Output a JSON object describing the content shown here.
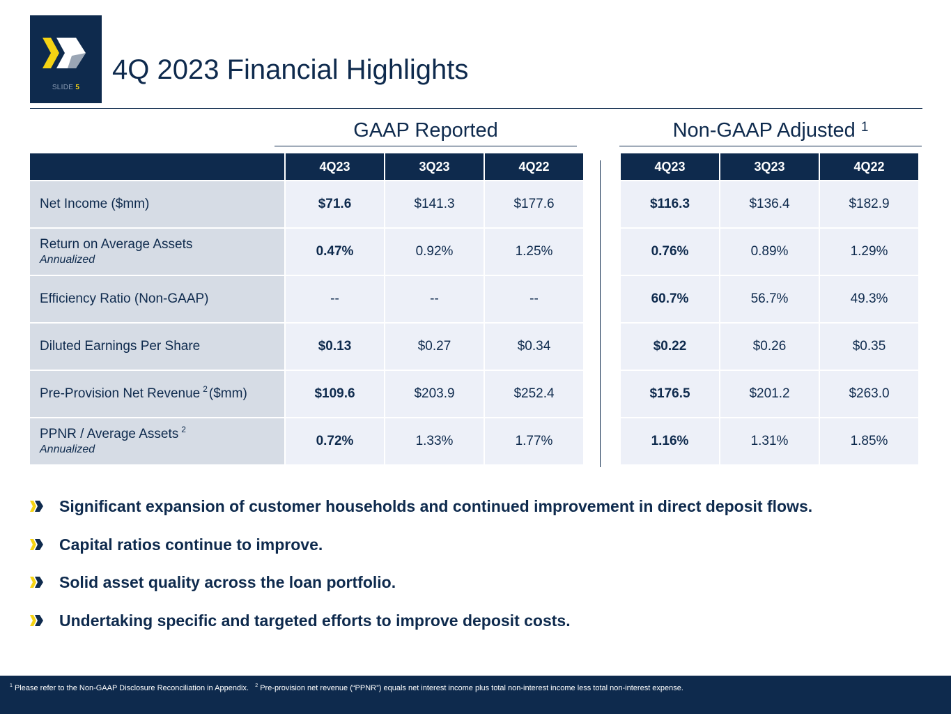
{
  "slide": {
    "label": "SLIDE",
    "number": "5"
  },
  "title": "4Q 2023 Financial Highlights",
  "sections": {
    "gaap": {
      "title": "GAAP Reported"
    },
    "non_gaap": {
      "title": "Non-GAAP Adjusted",
      "footnote_ref": "1"
    }
  },
  "table": {
    "columns": [
      "4Q23",
      "3Q23",
      "4Q22"
    ],
    "rows": [
      {
        "label": "Net Income ($mm)",
        "sup": "",
        "sublabel": "",
        "gaap": [
          "$71.6",
          "$141.3",
          "$177.6"
        ],
        "non_gaap": [
          "$116.3",
          "$136.4",
          "$182.9"
        ]
      },
      {
        "label": "Return on Average Assets",
        "sup": "",
        "sublabel": "Annualized",
        "gaap": [
          "0.47%",
          "0.92%",
          "1.25%"
        ],
        "non_gaap": [
          "0.76%",
          "0.89%",
          "1.29%"
        ]
      },
      {
        "label": "Efficiency Ratio (Non-GAAP)",
        "sup": "",
        "sublabel": "",
        "gaap": [
          "--",
          "--",
          "--"
        ],
        "non_gaap": [
          "60.7%",
          "56.7%",
          "49.3%"
        ]
      },
      {
        "label": "Diluted Earnings Per Share",
        "sup": "",
        "sublabel": "",
        "gaap": [
          "$0.13",
          "$0.27",
          "$0.34"
        ],
        "non_gaap": [
          "$0.22",
          "$0.26",
          "$0.35"
        ]
      },
      {
        "label": "Pre-Provision Net Revenue",
        "sup": "2",
        "label_suffix": "($mm)",
        "sublabel": "",
        "gaap": [
          "$109.6",
          "$203.9",
          "$252.4"
        ],
        "non_gaap": [
          "$176.5",
          "$201.2",
          "$263.0"
        ]
      },
      {
        "label": "PPNR / Average Assets",
        "sup": "2",
        "sublabel": "Annualized",
        "gaap": [
          "0.72%",
          "1.33%",
          "1.77%"
        ],
        "non_gaap": [
          "1.16%",
          "1.31%",
          "1.85%"
        ]
      }
    ]
  },
  "bullets": [
    "Significant expansion of customer households and continued improvement in direct deposit flows.",
    "Capital ratios continue to improve.",
    "Solid asset quality across the loan portfolio.",
    "Undertaking specific and targeted efforts to improve deposit costs."
  ],
  "footnotes": [
    {
      "num": "1",
      "text": "Please refer to the Non-GAAP Disclosure Reconciliation in Appendix."
    },
    {
      "num": "2",
      "text": "Pre-provision net revenue (“PPNR”) equals net interest income plus total non-interest income less total non-interest expense."
    }
  ],
  "colors": {
    "navy": "#0e2a4d",
    "yellow": "#f5d313",
    "label_bg": "#d6dce5",
    "value_bg": "#edf0f8"
  }
}
